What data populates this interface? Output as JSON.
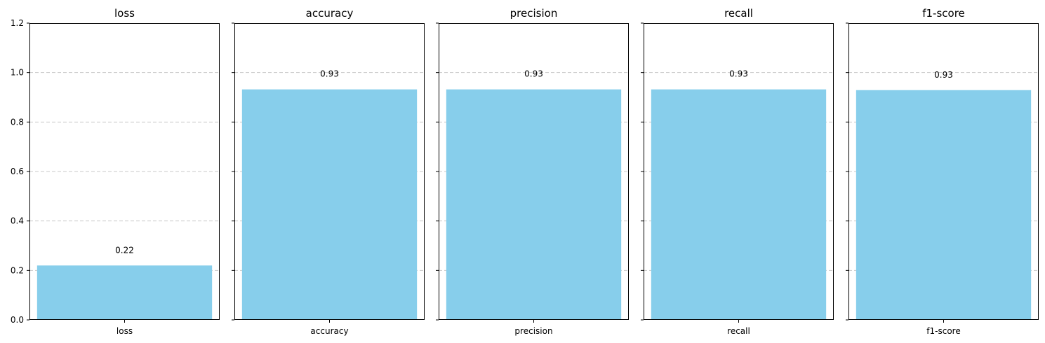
{
  "chart_data": [
    {
      "type": "bar",
      "title": "loss",
      "categories": [
        "loss"
      ],
      "values": [
        0.22
      ],
      "value_labels": [
        "0.22"
      ],
      "ylim": [
        0,
        1.2
      ],
      "yticks": [
        "0.0",
        "0.2",
        "0.4",
        "0.6",
        "0.8",
        "1.0",
        "1.2"
      ],
      "show_ytick_labels": true,
      "grid": "y-dashed",
      "bar_color": "#87ceeb"
    },
    {
      "type": "bar",
      "title": "accuracy",
      "categories": [
        "accuracy"
      ],
      "values": [
        0.932
      ],
      "value_labels": [
        "0.93"
      ],
      "ylim": [
        0,
        1.2
      ],
      "show_ytick_labels": false,
      "grid": "y-dashed",
      "bar_color": "#87ceeb"
    },
    {
      "type": "bar",
      "title": "precision",
      "categories": [
        "precision"
      ],
      "values": [
        0.932
      ],
      "value_labels": [
        "0.93"
      ],
      "ylim": [
        0,
        1.2
      ],
      "show_ytick_labels": false,
      "grid": "y-dashed",
      "bar_color": "#87ceeb"
    },
    {
      "type": "bar",
      "title": "recall",
      "categories": [
        "recall"
      ],
      "values": [
        0.932
      ],
      "value_labels": [
        "0.93"
      ],
      "ylim": [
        0,
        1.2
      ],
      "show_ytick_labels": false,
      "grid": "y-dashed",
      "bar_color": "#87ceeb"
    },
    {
      "type": "bar",
      "title": "f1-score",
      "categories": [
        "f1-score"
      ],
      "values": [
        0.929
      ],
      "value_labels": [
        "0.93"
      ],
      "ylim": [
        0,
        1.2
      ],
      "show_ytick_labels": false,
      "grid": "y-dashed",
      "bar_color": "#87ceeb"
    }
  ]
}
